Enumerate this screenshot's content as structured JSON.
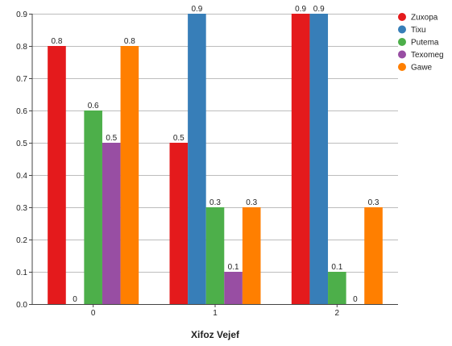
{
  "chart_data": {
    "type": "bar",
    "title": "",
    "xlabel": "Xifoz Vejef",
    "ylabel": "",
    "categories": [
      "0",
      "1",
      "2"
    ],
    "ylim": [
      0,
      0.9
    ],
    "yticks": [
      "0.0",
      "0.1",
      "0.2",
      "0.3",
      "0.4",
      "0.5",
      "0.6",
      "0.7",
      "0.8",
      "0.9"
    ],
    "grid": "horizontal",
    "legend_position": "top-right",
    "series": [
      {
        "name": "Zuxopa",
        "color": "#e41a1c",
        "values": [
          0.8,
          0.5,
          0.9
        ],
        "labels": [
          "0.8",
          "0.5",
          "0.9"
        ]
      },
      {
        "name": "Tixu",
        "color": "#377eb8",
        "values": [
          0,
          0.9,
          0.9
        ],
        "labels": [
          "0",
          "0.9",
          "0.9"
        ]
      },
      {
        "name": "Putema",
        "color": "#4daf4a",
        "values": [
          0.6,
          0.3,
          0.1
        ],
        "labels": [
          "0.6",
          "0.3",
          "0.1"
        ]
      },
      {
        "name": "Texomeg",
        "color": "#984ea3",
        "values": [
          0.5,
          0.1,
          0
        ],
        "labels": [
          "0.5",
          "0.1",
          "0"
        ]
      },
      {
        "name": "Gawe",
        "color": "#ff7f00",
        "values": [
          0.8,
          0.3,
          0.3
        ],
        "labels": [
          "0.8",
          "0.3",
          "0.3"
        ]
      }
    ]
  }
}
